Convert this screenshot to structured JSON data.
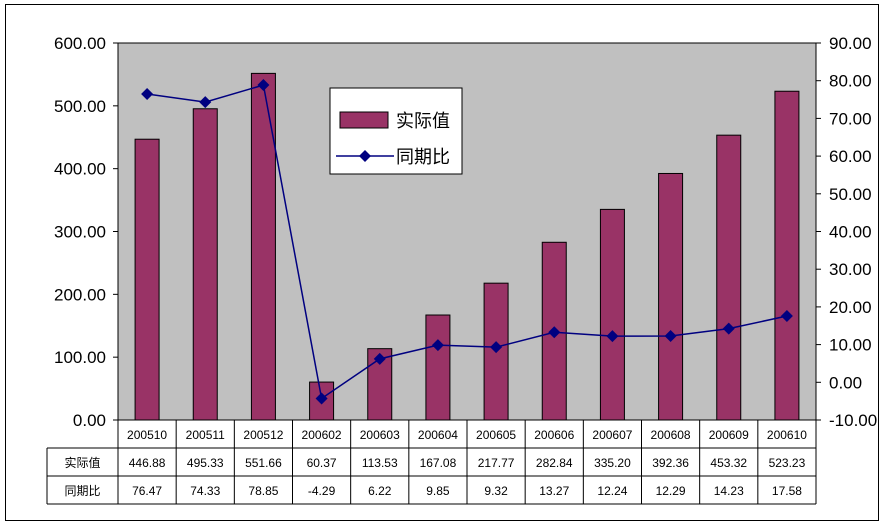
{
  "chart_data": {
    "type": "bar+line",
    "categories": [
      "200510",
      "200511",
      "200512",
      "200602",
      "200603",
      "200604",
      "200605",
      "200606",
      "200607",
      "200608",
      "200609",
      "200610"
    ],
    "series": [
      {
        "name": "实际值",
        "type": "bar",
        "axis": "left",
        "values": [
          446.88,
          495.33,
          551.66,
          60.37,
          113.53,
          167.08,
          217.77,
          282.84,
          335.2,
          392.36,
          453.32,
          523.23
        ],
        "labels": [
          "446.88",
          "495.33",
          "551.66",
          "60.37",
          "113.53",
          "167.08",
          "217.77",
          "282.84",
          "335.20",
          "392.36",
          "453.32",
          "523.23"
        ]
      },
      {
        "name": "同期比",
        "type": "line",
        "axis": "right",
        "values": [
          76.47,
          74.33,
          78.85,
          -4.29,
          6.22,
          9.85,
          9.32,
          13.27,
          12.24,
          12.29,
          14.23,
          17.58
        ],
        "labels": [
          "76.47",
          "74.33",
          "78.85",
          "-4.29",
          "6.22",
          "9.85",
          "9.32",
          "13.27",
          "12.24",
          "12.29",
          "14.23",
          "17.58"
        ]
      }
    ],
    "y_left": {
      "ylim": [
        0,
        600
      ],
      "ticks": [
        "0.00",
        "100.00",
        "200.00",
        "300.00",
        "400.00",
        "500.00",
        "600.00"
      ]
    },
    "y_right": {
      "ylim": [
        -10,
        90
      ],
      "ticks": [
        "-10.00",
        "0.00",
        "10.00",
        "20.00",
        "30.00",
        "40.00",
        "50.00",
        "60.00",
        "70.00",
        "80.00",
        "90.00"
      ]
    },
    "legend": {
      "placement": "top-center"
    },
    "grid": false,
    "data_table": true,
    "colors": {
      "bar": "#993366",
      "line": "#000080",
      "plot_bg": "#c0c0c0"
    }
  }
}
